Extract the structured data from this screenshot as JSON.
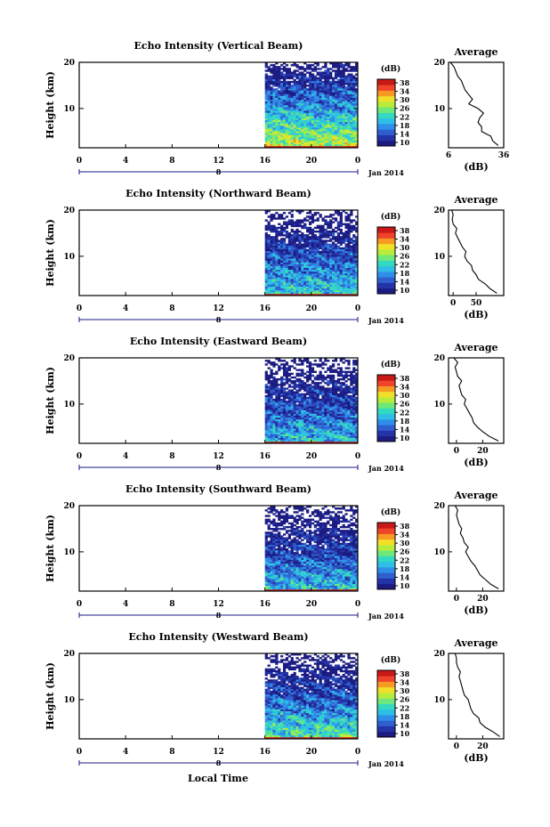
{
  "figure": {
    "xlabel": "Local Time",
    "date_label": "Jan 2014",
    "unit_label": "(dB)",
    "profile_title": "Average",
    "y_label": "Height (km)"
  },
  "colorbar": {
    "ticks": [
      "10",
      "14",
      "18",
      "22",
      "26",
      "30",
      "34",
      "38"
    ],
    "colors": [
      "#1b1b82",
      "#2433a6",
      "#2f5fcf",
      "#2f8ee8",
      "#2fbfe6",
      "#33d9c0",
      "#6ee87a",
      "#b7ec3c",
      "#f0e02a",
      "#f79a24",
      "#f0442a",
      "#c81818"
    ]
  },
  "chart_data": [
    {
      "type": "heatmap",
      "title": "Echo Intensity (Vertical Beam)",
      "xlabel": "Local Time",
      "ylabel": "Height (km)",
      "xlim": [
        0,
        24
      ],
      "ylim": [
        1.5,
        20
      ],
      "xticks": [
        "0",
        "4",
        "8",
        "12",
        "16",
        "20",
        "0"
      ],
      "yticks": [
        "10",
        "20"
      ],
      "day_marker": "8",
      "data_start_hour": 16,
      "colorbar_range_db": [
        10,
        38
      ],
      "surface_level_db": 28,
      "top_level_db": 8,
      "profile": {
        "title": "Average",
        "xlabel": "(dB)",
        "xticks": [
          "6",
          "36"
        ],
        "xlim": [
          6,
          36
        ],
        "yticks": [
          "10",
          "20"
        ],
        "heights_km": [
          2,
          3,
          4,
          5,
          6,
          7,
          8,
          9,
          10,
          11,
          12,
          13,
          14,
          15,
          16,
          17,
          18,
          19,
          20
        ],
        "values_db": [
          33,
          30,
          29,
          24,
          24,
          22,
          23,
          25,
          22,
          17,
          19,
          17,
          15,
          14,
          13,
          11,
          10,
          9,
          7
        ]
      }
    },
    {
      "type": "heatmap",
      "title": "Echo Intensity (Northward Beam)",
      "xlabel": "Local Time",
      "ylabel": "Height (km)",
      "xlim": [
        0,
        24
      ],
      "ylim": [
        1.5,
        20
      ],
      "xticks": [
        "0",
        "4",
        "8",
        "12",
        "16",
        "20",
        "0"
      ],
      "yticks": [
        "10",
        "20"
      ],
      "day_marker": "8",
      "data_start_hour": 16,
      "colorbar_range_db": [
        10,
        38
      ],
      "surface_level_db": 22,
      "top_level_db": 6,
      "profile": {
        "title": "Average",
        "xlabel": "(dB)",
        "xticks": [
          "0",
          "50"
        ],
        "xlim": [
          -10,
          110
        ],
        "yticks": [
          "10",
          "20"
        ],
        "heights_km": [
          2,
          3,
          4,
          5,
          6,
          7,
          8,
          9,
          10,
          11,
          12,
          13,
          14,
          15,
          16,
          17,
          18,
          19,
          20
        ],
        "values_db": [
          95,
          80,
          70,
          55,
          50,
          42,
          40,
          30,
          25,
          28,
          20,
          15,
          10,
          5,
          8,
          0,
          -2,
          0,
          -3
        ]
      }
    },
    {
      "type": "heatmap",
      "title": "Echo Intensity (Eastward Beam)",
      "xlabel": "Local Time",
      "ylabel": "Height (km)",
      "xlim": [
        0,
        24
      ],
      "ylim": [
        1.5,
        20
      ],
      "xticks": [
        "0",
        "4",
        "8",
        "12",
        "16",
        "20",
        "0"
      ],
      "yticks": [
        "10",
        "20"
      ],
      "day_marker": "8",
      "data_start_hour": 16,
      "colorbar_range_db": [
        10,
        38
      ],
      "surface_level_db": 21,
      "top_level_db": 6,
      "profile": {
        "title": "Average",
        "xlabel": "(dB)",
        "xticks": [
          "0",
          "20"
        ],
        "xlim": [
          -6,
          36
        ],
        "yticks": [
          "10",
          "20"
        ],
        "heights_km": [
          2,
          3,
          4,
          5,
          6,
          7,
          8,
          9,
          10,
          11,
          12,
          13,
          14,
          15,
          16,
          17,
          18,
          19,
          20
        ],
        "values_db": [
          32,
          25,
          20,
          16,
          13,
          12,
          10,
          8,
          6,
          7,
          4,
          3,
          2,
          4,
          1,
          0,
          -1,
          1,
          -2
        ]
      }
    },
    {
      "type": "heatmap",
      "title": "Echo Intensity (Southward Beam)",
      "xlabel": "Local Time",
      "ylabel": "Height (km)",
      "xlim": [
        0,
        24
      ],
      "ylim": [
        1.5,
        20
      ],
      "xticks": [
        "0",
        "4",
        "8",
        "12",
        "16",
        "20",
        "0"
      ],
      "yticks": [
        "10",
        "20"
      ],
      "day_marker": "8",
      "data_start_hour": 16,
      "colorbar_range_db": [
        10,
        38
      ],
      "surface_level_db": 21,
      "top_level_db": 6,
      "profile": {
        "title": "Average",
        "xlabel": "(dB)",
        "xticks": [
          "0",
          "20"
        ],
        "xlim": [
          -6,
          36
        ],
        "yticks": [
          "10",
          "20"
        ],
        "heights_km": [
          2,
          3,
          4,
          5,
          6,
          7,
          8,
          9,
          10,
          11,
          12,
          13,
          14,
          15,
          16,
          17,
          18,
          19,
          20
        ],
        "values_db": [
          32,
          26,
          22,
          18,
          16,
          14,
          11,
          9,
          7,
          9,
          6,
          5,
          3,
          4,
          2,
          1,
          0,
          1,
          -1
        ]
      }
    },
    {
      "type": "heatmap",
      "title": "Echo Intensity (Westward Beam)",
      "xlabel": "Local Time",
      "ylabel": "Height (km)",
      "xlim": [
        0,
        24
      ],
      "ylim": [
        1.5,
        20
      ],
      "xticks": [
        "0",
        "4",
        "8",
        "12",
        "16",
        "20",
        "0"
      ],
      "yticks": [
        "10",
        "20"
      ],
      "day_marker": "8",
      "data_start_hour": 16,
      "colorbar_range_db": [
        10,
        38
      ],
      "surface_level_db": 24,
      "top_level_db": 6,
      "profile": {
        "title": "Average",
        "xlabel": "(dB)",
        "xticks": [
          "0",
          "20"
        ],
        "xlim": [
          -6,
          36
        ],
        "yticks": [
          "10",
          "20"
        ],
        "heights_km": [
          2,
          3,
          4,
          5,
          6,
          7,
          8,
          9,
          10,
          11,
          12,
          13,
          14,
          15,
          16,
          17,
          18,
          19,
          20
        ],
        "values_db": [
          33,
          28,
          22,
          18,
          17,
          13,
          11,
          10,
          9,
          6,
          5,
          4,
          3,
          2,
          3,
          1,
          0,
          0,
          -1
        ]
      }
    }
  ]
}
